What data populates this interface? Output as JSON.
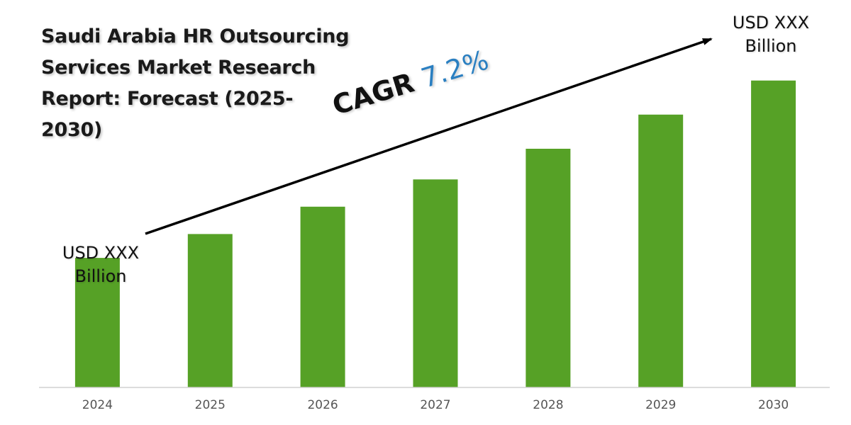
{
  "colors": {
    "bar": "#56a126",
    "axis": "#d0d0d0",
    "tick_text": "#555555",
    "arrow": "#000000",
    "cagr_value": "#2a7fc1"
  },
  "chart_data": {
    "type": "bar",
    "title": "Saudi Arabia HR Outsourcing Services Market Research Report: Forecast (2025-2030)",
    "categories": [
      "2024",
      "2025",
      "2026",
      "2027",
      "2028",
      "2029",
      "2030"
    ],
    "values": [
      1.0,
      1.07,
      1.15,
      1.23,
      1.32,
      1.42,
      1.52
    ],
    "ylim": [
      0.62,
      1.59
    ],
    "xlabel": "",
    "ylabel": "",
    "grid": false,
    "annotations": {
      "start_label": [
        "USD XXX",
        "Billion"
      ],
      "end_label": [
        "USD XXX",
        "Billion"
      ],
      "cagr_prefix": "CAGR",
      "cagr_value": "7.2%"
    }
  }
}
